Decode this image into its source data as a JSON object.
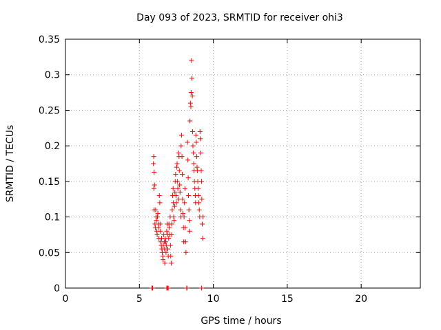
{
  "chart_data": {
    "type": "scatter",
    "title": "Day 093 of 2023, SRMTID for receiver ohi3",
    "xlabel": "GPS time / hours",
    "ylabel": "SRMTID / TECUs",
    "xlim": [
      0,
      24
    ],
    "ylim": [
      0,
      0.35
    ],
    "x_ticks": [
      0,
      5,
      10,
      15,
      20
    ],
    "y_ticks": [
      0,
      0.05,
      0.1,
      0.15,
      0.2,
      0.25,
      0.3,
      0.35
    ],
    "x_tick_labels": [
      "0",
      "5",
      "10",
      "15",
      "20"
    ],
    "y_tick_labels": [
      "0",
      "0.05",
      "0.1",
      "0.15",
      "0.2",
      "0.25",
      "0.3",
      "0.35"
    ],
    "grid": true,
    "legend": "none",
    "marker": "plus",
    "color": "#ff0000",
    "series": [
      {
        "points": [
          [
            5.85,
            0
          ],
          [
            5.87,
            0
          ],
          [
            5.9,
            0
          ],
          [
            5.95,
            0.175
          ],
          [
            5.97,
            0.185
          ],
          [
            6.0,
            0.163
          ],
          [
            6.02,
            0.145
          ],
          [
            5.98,
            0.14
          ],
          [
            6.0,
            0.11
          ],
          [
            6.05,
            0.09
          ],
          [
            6.08,
            0.085
          ],
          [
            6.1,
            0.11
          ],
          [
            6.12,
            0.1
          ],
          [
            6.15,
            0.095
          ],
          [
            6.18,
            0.08
          ],
          [
            6.2,
            0.075
          ],
          [
            6.22,
            0.1
          ],
          [
            6.25,
            0.105
          ],
          [
            6.28,
            0.09
          ],
          [
            6.3,
            0.085
          ],
          [
            6.32,
            0.07
          ],
          [
            6.35,
            0.13
          ],
          [
            6.38,
            0.12
          ],
          [
            6.4,
            0.09
          ],
          [
            6.42,
            0.08
          ],
          [
            6.45,
            0.065
          ],
          [
            6.48,
            0.06
          ],
          [
            6.5,
            0.07
          ],
          [
            6.52,
            0.055
          ],
          [
            6.55,
            0.05
          ],
          [
            6.58,
            0.045
          ],
          [
            6.6,
            0.04
          ],
          [
            6.62,
            0.06
          ],
          [
            6.65,
            0.075
          ],
          [
            6.68,
            0.065
          ],
          [
            6.7,
            0.055
          ],
          [
            6.72,
            0.035
          ],
          [
            6.75,
            0.07
          ],
          [
            6.78,
            0.065
          ],
          [
            6.8,
            0.05
          ],
          [
            6.82,
            0.06
          ],
          [
            6.85,
            0.08
          ],
          [
            6.88,
            0.09
          ],
          [
            6.9,
            0.075
          ],
          [
            6.92,
            0.055
          ],
          [
            6.95,
            0.045
          ],
          [
            6.98,
            0.07
          ],
          [
            7.0,
            0.09
          ],
          [
            7.02,
            0.085
          ],
          [
            7.05,
            0.075
          ],
          [
            7.08,
            0.1
          ],
          [
            7.1,
            0.06
          ],
          [
            7.12,
            0.045
          ],
          [
            7.15,
            0.035
          ],
          [
            7.18,
            0.075
          ],
          [
            7.2,
            0.09
          ],
          [
            7.22,
            0.11
          ],
          [
            7.25,
            0.13
          ],
          [
            7.28,
            0.14
          ],
          [
            7.3,
            0.12
          ],
          [
            7.32,
            0.1
          ],
          [
            7.35,
            0.095
          ],
          [
            7.38,
            0.115
          ],
          [
            7.4,
            0.135
          ],
          [
            7.42,
            0.15
          ],
          [
            7.45,
            0.16
          ],
          [
            7.48,
            0.13
          ],
          [
            7.5,
            0.12
          ],
          [
            7.52,
            0.17
          ],
          [
            7.55,
            0.175
          ],
          [
            7.58,
            0.15
          ],
          [
            7.6,
            0.14
          ],
          [
            7.62,
            0.125
          ],
          [
            7.65,
            0.19
          ],
          [
            7.68,
            0.185
          ],
          [
            7.7,
            0.165
          ],
          [
            7.72,
            0.145
          ],
          [
            7.75,
            0.135
          ],
          [
            7.78,
            0.11
          ],
          [
            7.8,
            0.1
          ],
          [
            7.82,
            0.2
          ],
          [
            7.85,
            0.215
          ],
          [
            7.88,
            0.185
          ],
          [
            7.9,
            0.16
          ],
          [
            7.92,
            0.125
          ],
          [
            7.95,
            0.105
          ],
          [
            7.98,
            0.085
          ],
          [
            8.0,
            0.065
          ],
          [
            8.02,
            0.1
          ],
          [
            8.05,
            0.12
          ],
          [
            8.08,
            0.14
          ],
          [
            8.1,
            0.085
          ],
          [
            8.12,
            0.065
          ],
          [
            8.15,
            0.05
          ],
          [
            8.2,
            0
          ],
          [
            8.22,
            0
          ],
          [
            8.25,
            0.205
          ],
          [
            8.28,
            0.18
          ],
          [
            8.3,
            0.155
          ],
          [
            8.32,
            0.13
          ],
          [
            8.35,
            0.11
          ],
          [
            8.38,
            0.095
          ],
          [
            8.4,
            0.08
          ],
          [
            8.42,
            0.235
          ],
          [
            8.45,
            0.26
          ],
          [
            8.48,
            0.255
          ],
          [
            8.5,
            0.275
          ],
          [
            8.52,
            0.32
          ],
          [
            8.55,
            0.295
          ],
          [
            8.58,
            0.27
          ],
          [
            8.6,
            0.22
          ],
          [
            8.62,
            0.2
          ],
          [
            8.65,
            0.19
          ],
          [
            8.68,
            0.175
          ],
          [
            8.7,
            0.165
          ],
          [
            8.72,
            0.15
          ],
          [
            8.75,
            0.14
          ],
          [
            8.78,
            0.13
          ],
          [
            8.8,
            0.12
          ],
          [
            8.82,
            0.215
          ],
          [
            8.85,
            0.205
          ],
          [
            8.88,
            0.185
          ],
          [
            8.9,
            0.17
          ],
          [
            8.92,
            0.165
          ],
          [
            8.95,
            0.15
          ],
          [
            8.98,
            0.14
          ],
          [
            9.0,
            0.13
          ],
          [
            9.02,
            0.12
          ],
          [
            9.05,
            0.11
          ],
          [
            9.08,
            0.1
          ],
          [
            9.1,
            0.22
          ],
          [
            9.12,
            0.21
          ],
          [
            9.15,
            0.19
          ],
          [
            9.18,
            0.165
          ],
          [
            9.2,
            0.15
          ],
          [
            9.22,
            0.125
          ],
          [
            9.25,
            0.09
          ],
          [
            9.28,
            0.07
          ],
          [
            9.3,
            0.1
          ],
          [
            9.2,
            0
          ],
          [
            6.85,
            0
          ],
          [
            6.9,
            0
          ],
          [
            6.95,
            0
          ]
        ]
      }
    ]
  }
}
